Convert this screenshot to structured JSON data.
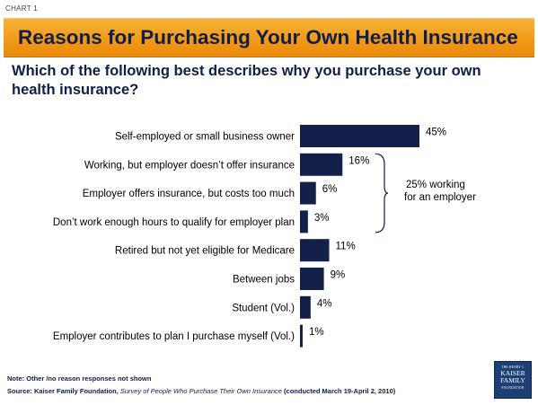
{
  "header": {
    "tag": "CHART 1",
    "title": "Reasons for Purchasing Your Own Health Insurance",
    "question": "Which of the following best describes why you purchase your own health insurance?"
  },
  "chart_data": {
    "type": "bar",
    "orientation": "horizontal",
    "categories": [
      "Self-employed or small business owner",
      "Working, but employer doesn’t offer insurance",
      "Employer offers insurance, but costs too much",
      "Don’t work enough hours to qualify for employer plan",
      "Retired but not yet eligible for Medicare",
      "Between jobs",
      "Student (Vol.)",
      "Employer contributes to plan I purchase myself (Vol.)"
    ],
    "values": [
      45,
      16,
      6,
      3,
      11,
      9,
      4,
      1
    ],
    "value_labels": [
      "45%",
      "16%",
      "6%",
      "3%",
      "11%",
      "9%",
      "4%",
      "1%"
    ],
    "unit": "%",
    "bar_color": "#13214a",
    "grid": false,
    "annotation": {
      "line1": "25% working",
      "line2": "for an employer",
      "spans_categories": [
        1,
        2,
        3
      ]
    }
  },
  "footer": {
    "note": "Note: Other /no reason responses not shown",
    "source_prefix": "Source: Kaiser Family Foundation, ",
    "source_title": "Survey of People Who Purchase Their Own Insurance",
    "source_suffix": " (conducted March 19-April 2, 2010)"
  },
  "logo": {
    "line1": "THE HENRY J.",
    "line2": "KAISER",
    "line3": "FAMILY",
    "line4": "FOUNDATION"
  },
  "colors": {
    "title_bar": "#f29a17",
    "title_text": "#0f1e4a",
    "logo_bg": "#1d3f73"
  }
}
